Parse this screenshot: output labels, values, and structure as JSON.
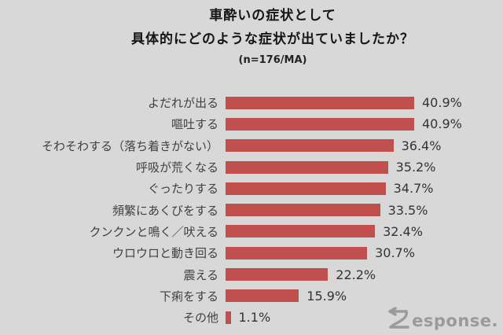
{
  "chart_data": {
    "type": "bar",
    "orientation": "horizontal",
    "title_line1": "車酔いの症状として",
    "title_line2": "具体的にどのような症状が出ていましたか？",
    "subtitle": "(n=176/MA)",
    "categories": [
      "よだれが出る",
      "嘔吐する",
      "そわそわする（落ち着きがない）",
      "呼吸が荒くなる",
      "ぐったりする",
      "頻繁にあくびをする",
      "クンクンと鳴く／吠える",
      "ウロウロと動き回る",
      "震える",
      "下痢をする",
      "その他"
    ],
    "values": [
      40.9,
      40.9,
      36.4,
      35.2,
      34.7,
      33.5,
      32.4,
      30.7,
      22.2,
      15.9,
      1.1
    ],
    "value_labels": [
      "40.9%",
      "40.9%",
      "36.4%",
      "35.2%",
      "34.7%",
      "33.5%",
      "32.4%",
      "30.7%",
      "22.2%",
      "15.9%",
      "1.1%"
    ],
    "xlim": [
      0,
      45
    ],
    "grid": false,
    "legend": "none",
    "bar_color": "#c0504d",
    "background_color": "#d8d8d8"
  },
  "logo": {
    "text": "Response.",
    "display_rest": "esponse.",
    "color": "#9a9a9a"
  }
}
